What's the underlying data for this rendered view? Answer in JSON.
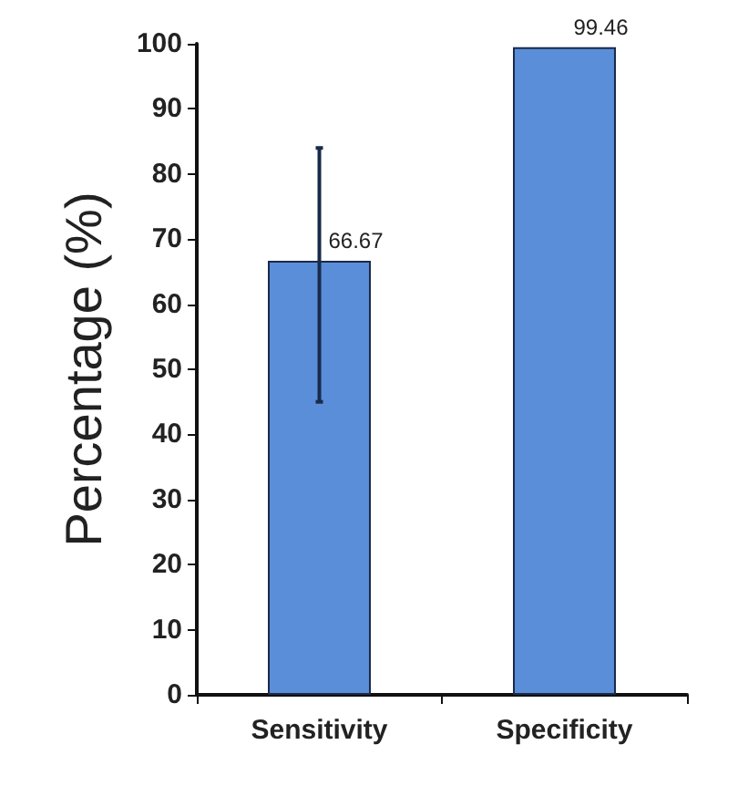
{
  "chart_data": {
    "type": "bar",
    "ylabel": "Percentage (%)",
    "categories": [
      "Sensitivity",
      "Specificity"
    ],
    "values": [
      66.67,
      99.46
    ],
    "errors": [
      [
        45,
        84
      ],
      null
    ],
    "color": "#5b8ed8",
    "data_labels": true,
    "ylim": [
      0,
      100
    ],
    "yticks": [
      0,
      10,
      20,
      30,
      40,
      50,
      60,
      70,
      80,
      90,
      100
    ],
    "grid": false
  }
}
